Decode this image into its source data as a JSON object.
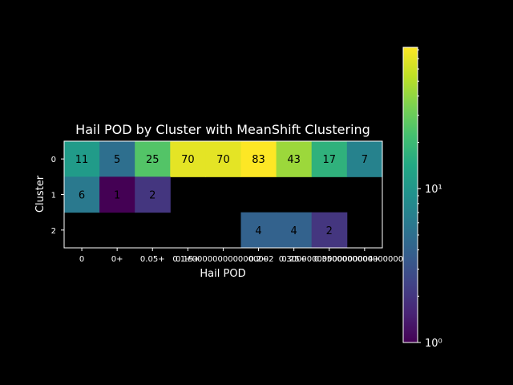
{
  "chart_data": {
    "type": "heatmap",
    "title": "Hail POD by Cluster with MeanShift Clustering",
    "xlabel": "Hail POD",
    "ylabel": "Cluster",
    "x_categories": [
      "0",
      "0+",
      "0.05+",
      "0.15+",
      "0.1+0000000000000002",
      "0.2+",
      "0.25+",
      "0.30000000000000004+",
      "0.35000000000000003+"
    ],
    "y_categories": [
      "0",
      "1",
      "2"
    ],
    "values": [
      [
        11,
        5,
        25,
        70,
        70,
        83,
        43,
        17,
        7
      ],
      [
        6,
        1,
        2,
        null,
        null,
        null,
        null,
        null,
        null
      ],
      [
        null,
        null,
        null,
        null,
        null,
        4,
        4,
        2,
        null
      ]
    ],
    "colorbar": {
      "scale": "log",
      "colormap": "viridis",
      "min": 1,
      "max": 83,
      "major_ticks": [
        1,
        10
      ],
      "tick_labels": [
        "10⁰",
        "10¹"
      ]
    }
  }
}
